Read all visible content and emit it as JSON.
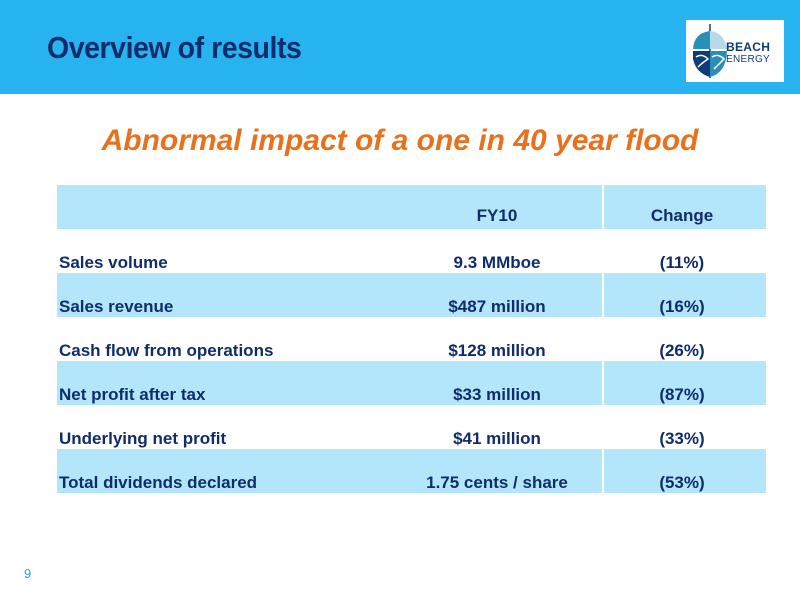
{
  "slide": {
    "title": "Overview of results",
    "subtitle": "Abnormal impact of a one in 40 year flood",
    "page_number": "9"
  },
  "logo": {
    "line1": "BEACH",
    "line2": "ENERGY",
    "icon": "beach-energy-logo-icon",
    "colors": {
      "blue": "#0f3c77",
      "teal": "#2a8fb8"
    }
  },
  "table": {
    "headers": [
      "",
      "FY10",
      "Change"
    ],
    "rows": [
      {
        "label": "Sales volume",
        "value": "9.3 MMboe",
        "change": "(11%)"
      },
      {
        "label": "Sales revenue",
        "value": "$487 million",
        "change": "(16%)"
      },
      {
        "label": "Cash flow from operations",
        "value": "$128 million",
        "change": "(26%)"
      },
      {
        "label": "Net profit after tax",
        "value": "$33 million",
        "change": "(87%)"
      },
      {
        "label": "Underlying net profit",
        "value": "$41 million",
        "change": "(33%)"
      },
      {
        "label": "Total dividends declared",
        "value": "1.75 cents / share",
        "change": "(53%)"
      }
    ]
  },
  "colors": {
    "header_band": "#26b3ef",
    "title_text": "#102c6b",
    "subtitle_text": "#e8711d",
    "row_shade": "#b3e6fb"
  }
}
